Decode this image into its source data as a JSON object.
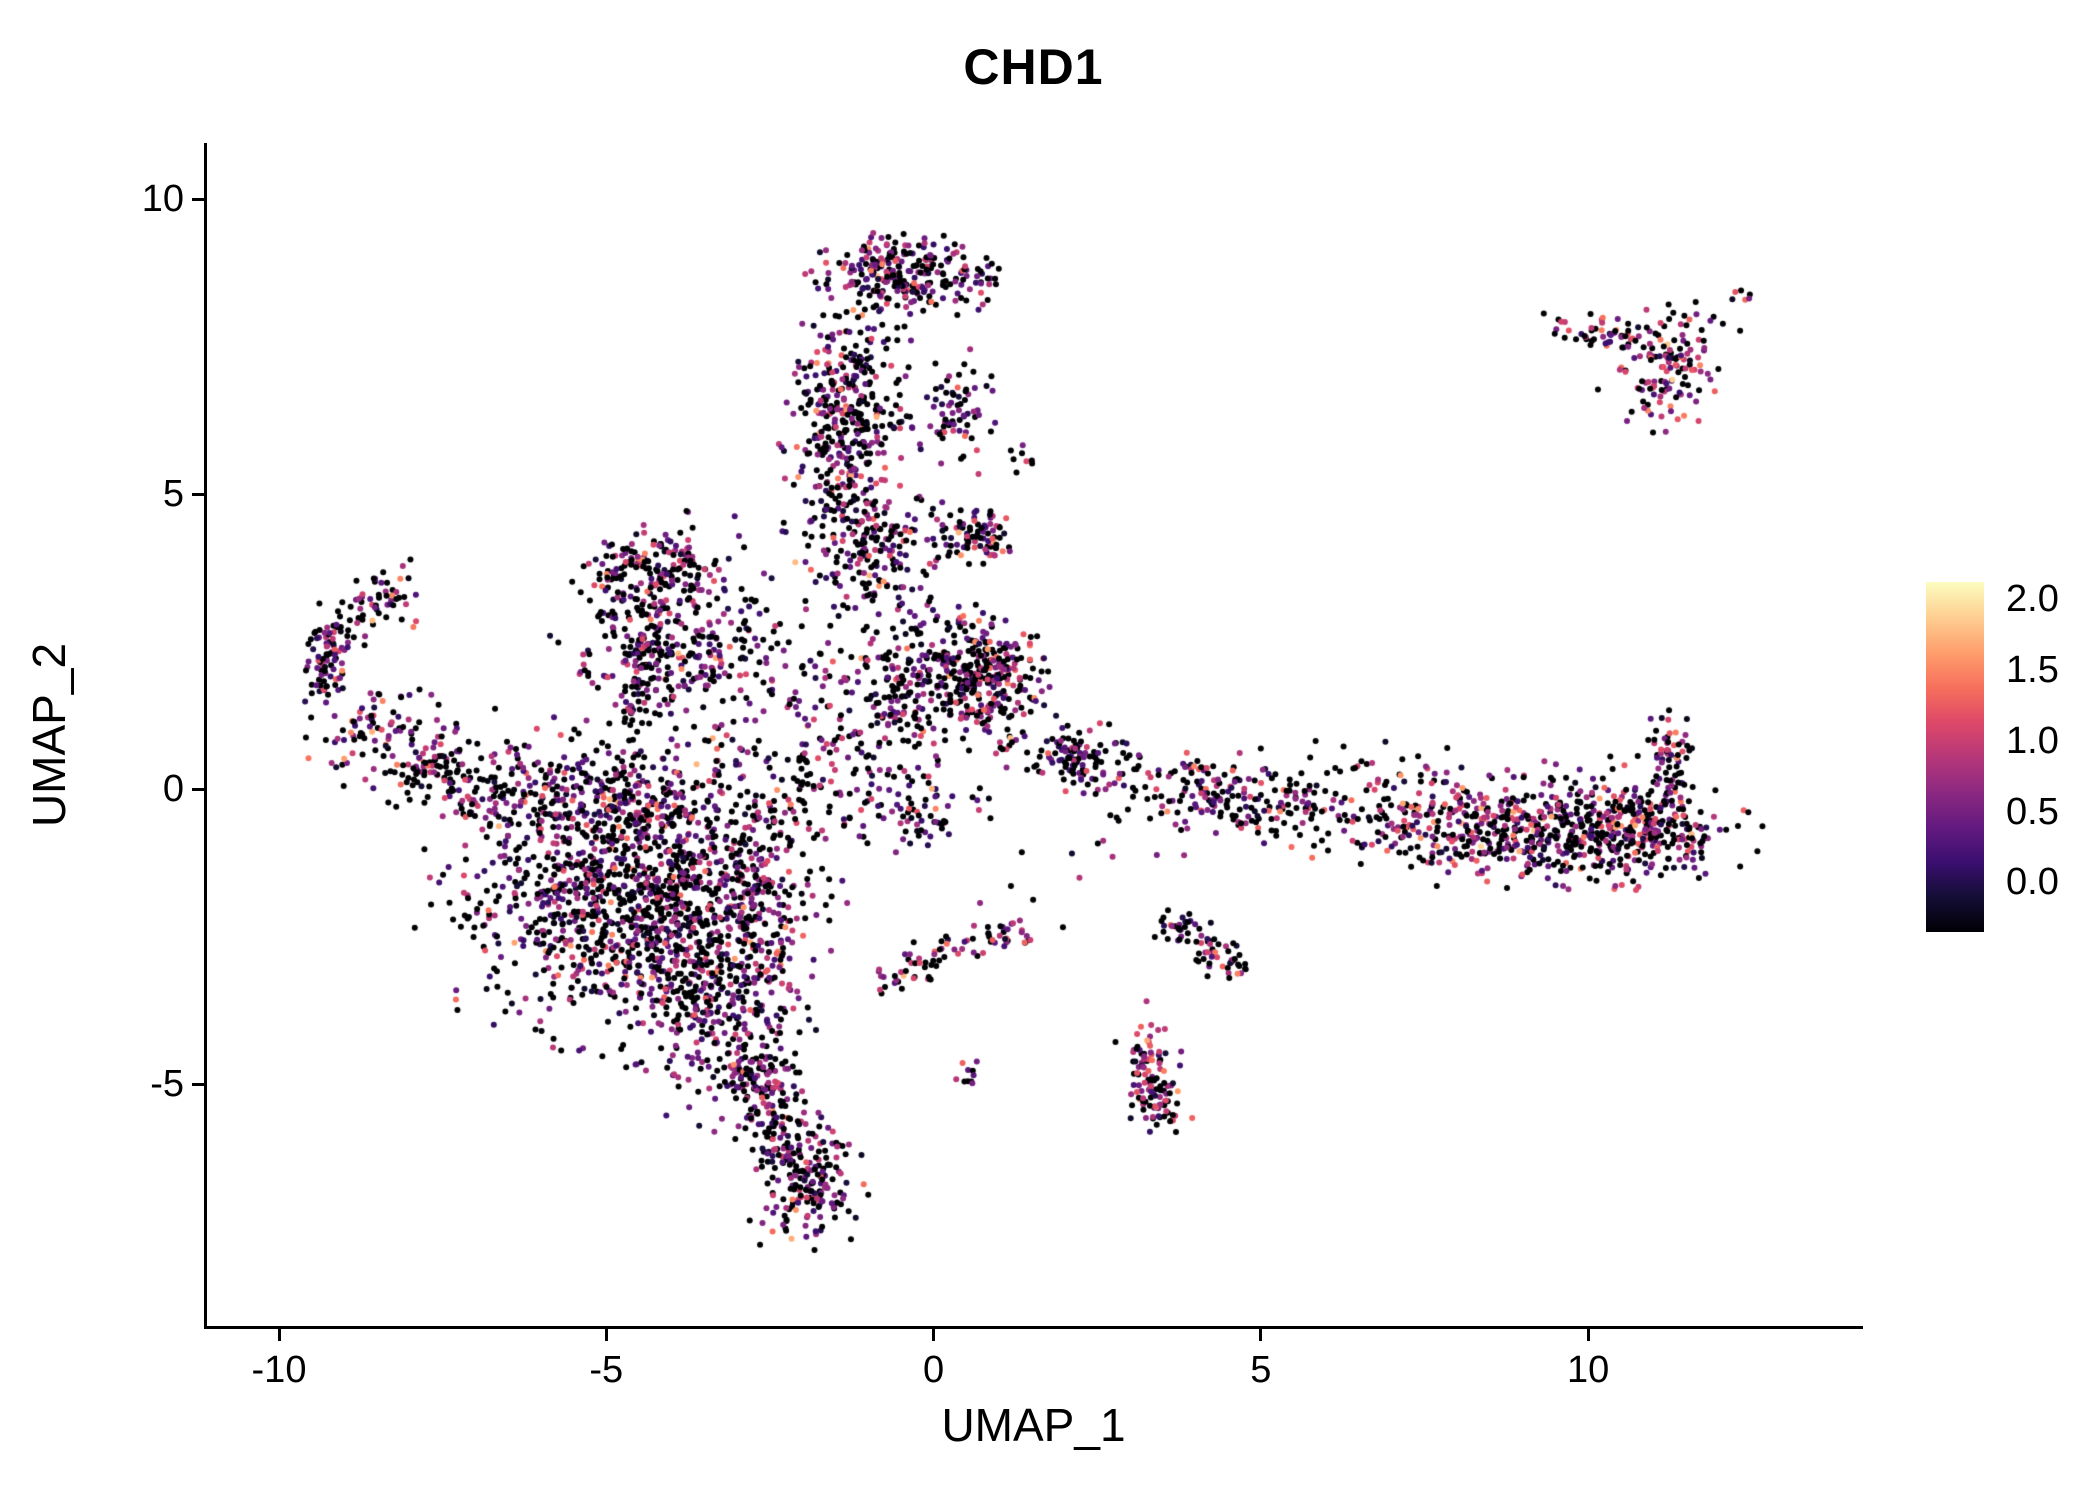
{
  "colors": {
    "background": "#ffffff",
    "axis": "#000000",
    "text": "#000000"
  },
  "chart_data": {
    "type": "scatter",
    "title": "CHD1",
    "xlabel": "UMAP_1",
    "ylabel": "UMAP_2",
    "xlim": [
      -11.1,
      14.2
    ],
    "ylim": [
      -9.1,
      10.95
    ],
    "grid": false,
    "x_ticks": [
      -10,
      -5,
      0,
      5,
      10
    ],
    "x_tick_labels": [
      "-10",
      "-5",
      "0",
      "5",
      "10"
    ],
    "y_ticks": [
      -5,
      0,
      5,
      10
    ],
    "y_tick_labels": [
      "-5",
      "0",
      "5",
      "10"
    ],
    "point_radius_px": 3,
    "seed": 42,
    "expr_default": {
      "p0": 0.47,
      "mu": 0.78,
      "sigma": 0.42
    },
    "legend": {
      "position": "right",
      "colormap": "magma",
      "tick_values": [
        2.0,
        1.5,
        1.0,
        0.5,
        0.0
      ],
      "tick_labels": [
        "2.0",
        "1.5",
        "1.0",
        "0.5",
        "0.0"
      ],
      "vmin": -0.35,
      "vmax": 2.12,
      "stops": [
        {
          "t": 0.0,
          "color": "#000004"
        },
        {
          "t": 0.1,
          "color": "#140e36"
        },
        {
          "t": 0.2,
          "color": "#3b0f70"
        },
        {
          "t": 0.3,
          "color": "#641a80"
        },
        {
          "t": 0.4,
          "color": "#8c2981"
        },
        {
          "t": 0.5,
          "color": "#b73779"
        },
        {
          "t": 0.6,
          "color": "#de4968"
        },
        {
          "t": 0.7,
          "color": "#f7705c"
        },
        {
          "t": 0.8,
          "color": "#fe9f6d"
        },
        {
          "t": 0.9,
          "color": "#fecf92"
        },
        {
          "t": 1.0,
          "color": "#fcfdbf"
        }
      ]
    },
    "clusters": [
      {
        "name": "top-cap",
        "shape": "gauss",
        "n": 260,
        "cx": -0.5,
        "cy": 8.75,
        "sx": 0.62,
        "sy": 0.3,
        "rot": -5,
        "p0": 0.4,
        "mu": 0.85
      },
      {
        "name": "upper-strip",
        "shape": "gauss",
        "n": 420,
        "cx": -1.35,
        "cy": 6.2,
        "sx": 0.42,
        "sy": 1.05,
        "rot": -4
      },
      {
        "name": "upper-strip-flare",
        "shape": "gauss",
        "n": 150,
        "cx": -0.95,
        "cy": 4.1,
        "sx": 0.55,
        "sy": 0.5
      },
      {
        "name": "upper-strip-side",
        "shape": "gauss",
        "n": 70,
        "cx": 0.35,
        "cy": 6.3,
        "sx": 0.28,
        "sy": 0.45
      },
      {
        "name": "stray-upper",
        "shape": "gauss",
        "n": 8,
        "cx": 1.3,
        "cy": 5.6,
        "sx": 0.15,
        "sy": 0.15
      },
      {
        "name": "wing",
        "shape": "gauss",
        "n": 330,
        "cx": -3.9,
        "cy": 2.6,
        "sx": 0.7,
        "sy": 0.72,
        "rot": 25
      },
      {
        "name": "wing-top",
        "shape": "gauss",
        "n": 120,
        "cx": -4.35,
        "cy": 3.8,
        "sx": 0.45,
        "sy": 0.28
      },
      {
        "name": "wing-edge",
        "shape": "line",
        "n": 70,
        "x1": -4.65,
        "y1": 1.1,
        "x2": -4.25,
        "y2": 3.2,
        "w": 0.12
      },
      {
        "name": "arm-tip",
        "shape": "gauss",
        "n": 60,
        "cx": -8.6,
        "cy": 3.1,
        "sx": 0.35,
        "sy": 0.25,
        "rot": 20
      },
      {
        "name": "arm-curve",
        "shape": "line",
        "n": 80,
        "x1": -9.2,
        "y1": 2.8,
        "x2": -9.3,
        "y2": 1.6,
        "w": 0.18
      },
      {
        "name": "arm-base",
        "shape": "gauss",
        "n": 110,
        "cx": -8.4,
        "cy": 0.9,
        "sx": 0.55,
        "sy": 0.42,
        "rot": -20
      },
      {
        "name": "arm-bridge",
        "shape": "line",
        "n": 70,
        "x1": -7.9,
        "y1": 0.5,
        "x2": -6.9,
        "y2": -0.2,
        "w": 0.3
      },
      {
        "name": "main-mass",
        "shape": "gauss",
        "n": 1250,
        "cx": -4.6,
        "cy": -1.7,
        "sx": 1.25,
        "sy": 1.15,
        "rot": -15
      },
      {
        "name": "main-mass-top",
        "shape": "gauss",
        "n": 260,
        "cx": -5.3,
        "cy": -0.1,
        "sx": 1.25,
        "sy": 0.42,
        "rot": -8
      },
      {
        "name": "main-mass-bottom",
        "shape": "gauss",
        "n": 300,
        "cx": -3.35,
        "cy": -3.6,
        "sx": 0.62,
        "sy": 0.85,
        "rot": 15
      },
      {
        "name": "main-mass-right",
        "shape": "gauss",
        "n": 150,
        "cx": -2.7,
        "cy": -1.7,
        "sx": 0.45,
        "sy": 0.9
      },
      {
        "name": "mass-bridge",
        "shape": "gauss",
        "n": 70,
        "cx": -1.9,
        "cy": 0.0,
        "sx": 0.55,
        "sy": 0.5
      },
      {
        "name": "mass-halo",
        "shape": "gauss",
        "n": 90,
        "cx": -2.2,
        "cy": 1.6,
        "sx": 0.7,
        "sy": 0.85
      },
      {
        "name": "tail-upper",
        "shape": "line",
        "n": 180,
        "x1": -2.8,
        "y1": -4.6,
        "x2": -2.1,
        "y2": -6.3,
        "w": 0.3
      },
      {
        "name": "tail-lower",
        "shape": "gauss",
        "n": 160,
        "cx": -1.85,
        "cy": -6.8,
        "sx": 0.33,
        "sy": 0.45,
        "rot": -15
      },
      {
        "name": "center-blob",
        "shape": "gauss",
        "n": 330,
        "cx": 0.7,
        "cy": 1.9,
        "sx": 0.48,
        "sy": 0.5,
        "p0": 0.42,
        "mu": 0.85
      },
      {
        "name": "center-column",
        "shape": "gauss",
        "n": 230,
        "cx": -0.55,
        "cy": 1.6,
        "sx": 0.5,
        "sy": 1.1
      },
      {
        "name": "center-top-spot",
        "shape": "gauss",
        "n": 85,
        "cx": 0.7,
        "cy": 4.3,
        "sx": 0.28,
        "sy": 0.22
      },
      {
        "name": "center-below",
        "shape": "gauss",
        "n": 50,
        "cx": -0.3,
        "cy": -0.4,
        "sx": 0.55,
        "sy": 0.45
      },
      {
        "name": "band-left",
        "shape": "gauss",
        "n": 110,
        "cx": 2.2,
        "cy": 0.55,
        "sx": 0.42,
        "sy": 0.25,
        "rot": -10
      },
      {
        "name": "band-mid",
        "shape": "gauss",
        "n": 210,
        "cx": 4.4,
        "cy": -0.1,
        "sx": 1.0,
        "sy": 0.3,
        "rot": -8
      },
      {
        "name": "band-right",
        "shape": "gauss",
        "n": 560,
        "cx": 8.9,
        "cy": -0.7,
        "sx": 1.5,
        "sy": 0.4,
        "rot": -4,
        "p0": 0.44,
        "mu": 0.85
      },
      {
        "name": "band-right-dense",
        "shape": "gauss",
        "n": 220,
        "cx": 10.6,
        "cy": -0.6,
        "sx": 0.6,
        "sy": 0.4,
        "p0": 0.4,
        "mu": 0.9
      },
      {
        "name": "band-tip-up",
        "shape": "gauss",
        "n": 70,
        "cx": 11.25,
        "cy": 0.45,
        "sx": 0.18,
        "sy": 0.45,
        "p0": 0.4,
        "mu": 0.9
      },
      {
        "name": "band-above",
        "shape": "gauss",
        "n": 40,
        "cx": 7.5,
        "cy": 0.35,
        "sx": 1.6,
        "sy": 0.25
      },
      {
        "name": "island",
        "shape": "gauss",
        "n": 140,
        "cx": 11.2,
        "cy": 7.2,
        "sx": 0.5,
        "sy": 0.45,
        "rot": 30,
        "p0": 0.32,
        "mu": 1.0
      },
      {
        "name": "island-arm",
        "shape": "gauss",
        "n": 45,
        "cx": 10.1,
        "cy": 7.75,
        "sx": 0.45,
        "sy": 0.18,
        "rot": -10,
        "p0": 0.35,
        "mu": 0.95
      },
      {
        "name": "island-outlier",
        "shape": "gauss",
        "n": 6,
        "cx": 12.35,
        "cy": 8.35,
        "sx": 0.1,
        "sy": 0.1,
        "p0": 0.3,
        "mu": 1.0
      },
      {
        "name": "arc",
        "shape": "line",
        "n": 50,
        "x1": -0.9,
        "y1": -3.35,
        "x2": 0.6,
        "y2": -2.55,
        "w": 0.15
      },
      {
        "name": "arc-right",
        "shape": "line",
        "n": 30,
        "x1": 0.6,
        "y1": -2.55,
        "x2": 1.6,
        "y2": -2.45,
        "w": 0.13
      },
      {
        "name": "arc-pair",
        "shape": "gauss",
        "n": 10,
        "cx": 0.55,
        "cy": -4.85,
        "sx": 0.1,
        "sy": 0.14
      },
      {
        "name": "spur",
        "shape": "gauss",
        "n": 120,
        "cx": 3.35,
        "cy": -4.9,
        "sx": 0.22,
        "sy": 0.55,
        "rot": 8,
        "p0": 0.38,
        "mu": 0.95
      },
      {
        "name": "spur-diag",
        "shape": "line",
        "n": 75,
        "x1": 3.5,
        "y1": -2.15,
        "x2": 4.75,
        "y2": -3.1,
        "w": 0.16
      },
      {
        "name": "strays",
        "shape": "gauss",
        "n": 18,
        "cx": 1.6,
        "cy": -1.3,
        "sx": 1.4,
        "sy": 0.8
      }
    ]
  }
}
